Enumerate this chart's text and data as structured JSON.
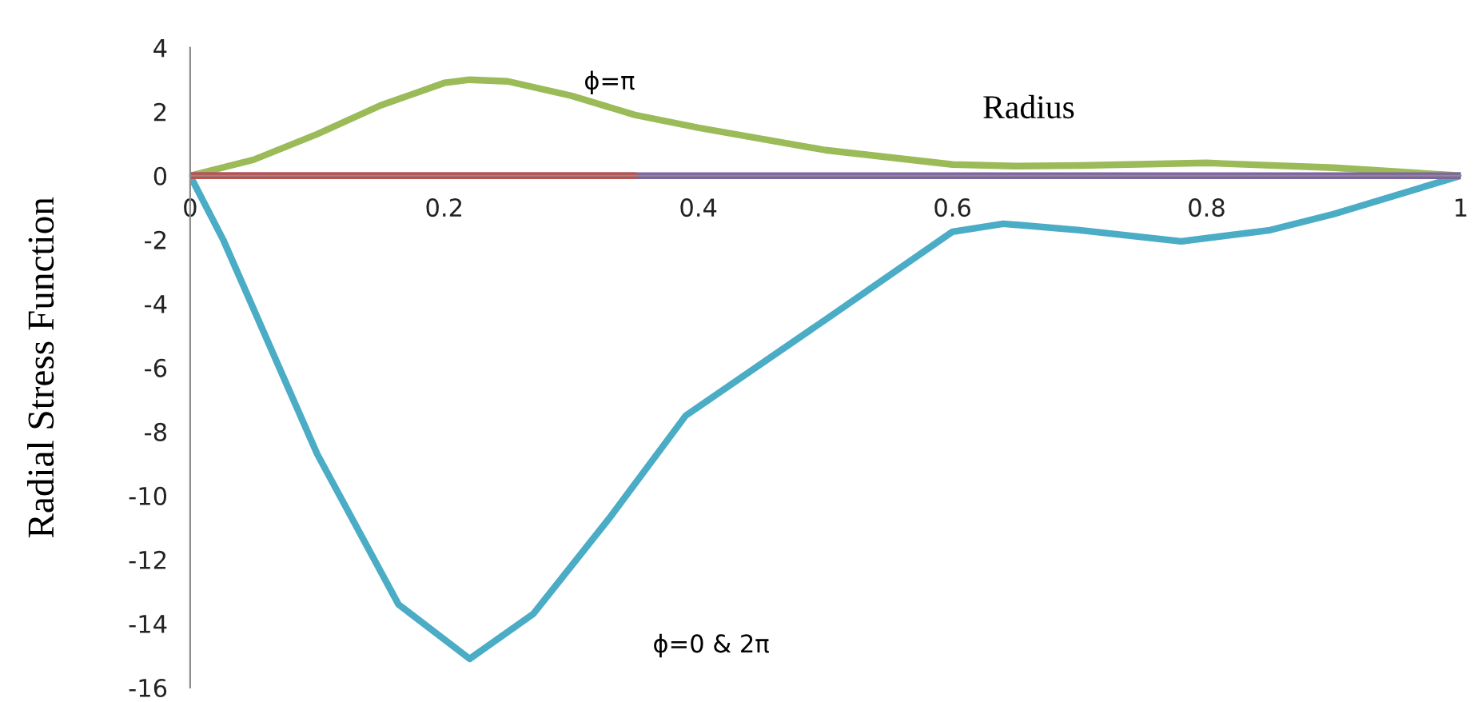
{
  "chart_data": {
    "type": "line",
    "xlabel": "Radius",
    "ylabel": "Radial Stress Function",
    "annotations": [
      "ϕ=π",
      "ϕ=0 & 2π"
    ],
    "xlim": [
      0,
      1
    ],
    "ylim": [
      -16,
      4
    ],
    "xticks": [
      0,
      0.2,
      0.4,
      0.6,
      0.8,
      1
    ],
    "yticks": [
      -16,
      -14,
      -12,
      -10,
      -8,
      -6,
      -4,
      -2,
      0,
      2,
      4
    ],
    "grid": false,
    "legend": false,
    "marker": "none",
    "line_style": "solid",
    "series": [
      {
        "color": "#9bbb59",
        "x": [
          0,
          0.05,
          0.1,
          0.15,
          0.2,
          0.22,
          0.25,
          0.3,
          0.35,
          0.4,
          0.5,
          0.6,
          0.65,
          0.7,
          0.8,
          0.9,
          1
        ],
        "values": [
          0,
          0.5,
          1.3,
          2.2,
          2.9,
          3.0,
          2.95,
          2.5,
          1.9,
          1.5,
          0.8,
          0.35,
          0.3,
          0.32,
          0.4,
          0.25,
          0
        ]
      },
      {
        "color": "#4bacc6",
        "x": [
          0,
          0.026,
          0.1,
          0.164,
          0.22,
          0.27,
          0.33,
          0.39,
          0.5,
          0.6,
          0.64,
          0.7,
          0.78,
          0.85,
          0.9,
          1
        ],
        "values": [
          0,
          -2.0,
          -8.7,
          -13.4,
          -15.1,
          -13.7,
          -10.7,
          -7.5,
          -4.5,
          -1.75,
          -1.5,
          -1.7,
          -2.05,
          -1.7,
          -1.2,
          0
        ]
      },
      {
        "color": "#8064a2",
        "x": [
          0,
          1
        ],
        "values": [
          0,
          0
        ]
      },
      {
        "color": "#c0504d",
        "x": [
          0,
          0.35
        ],
        "values": [
          0,
          0
        ]
      }
    ]
  }
}
